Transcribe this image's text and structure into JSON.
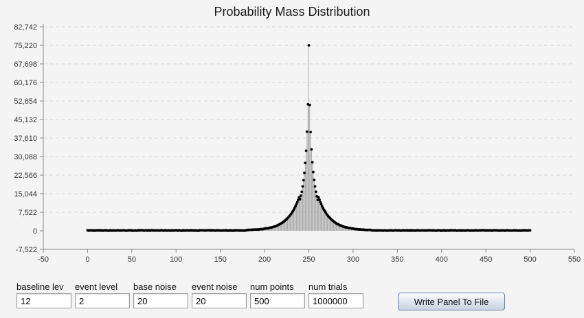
{
  "chart_data": {
    "type": "bar",
    "title": "Probability Mass Distribution",
    "xlabel": "",
    "ylabel": "",
    "xlim": [
      -50,
      550
    ],
    "ylim": [
      -7522,
      82742
    ],
    "x_ticks": [
      "-50",
      "0",
      "50",
      "100",
      "150",
      "200",
      "250",
      "300",
      "350",
      "400",
      "450",
      "500",
      "550"
    ],
    "y_ticks": [
      "-7,522",
      "0",
      "7,522",
      "15,044",
      "22,566",
      "30,088",
      "37,610",
      "45,132",
      "52,654",
      "60,176",
      "67,698",
      "75,220",
      "82,742"
    ],
    "grid": "horizontal dashed",
    "bar_color": "#9a9a9a",
    "point_color": "#000000",
    "x_range": [
      0,
      500
    ],
    "points": [
      {
        "x": 240,
        "y": 12800
      },
      {
        "x": 241,
        "y": 14200
      },
      {
        "x": 242,
        "y": 15800
      },
      {
        "x": 243,
        "y": 18000
      },
      {
        "x": 244,
        "y": 20500
      },
      {
        "x": 245,
        "y": 23500
      },
      {
        "x": 246,
        "y": 27500
      },
      {
        "x": 247,
        "y": 32500
      },
      {
        "x": 248,
        "y": 40200
      },
      {
        "x": 249,
        "y": 51300
      },
      {
        "x": 250,
        "y": 75220
      },
      {
        "x": 251,
        "y": 51000
      },
      {
        "x": 252,
        "y": 40000
      },
      {
        "x": 253,
        "y": 33000
      },
      {
        "x": 254,
        "y": 27800
      },
      {
        "x": 255,
        "y": 23800
      },
      {
        "x": 256,
        "y": 20600
      },
      {
        "x": 257,
        "y": 18000
      },
      {
        "x": 258,
        "y": 15800
      },
      {
        "x": 259,
        "y": 14000
      },
      {
        "x": 260,
        "y": 12500
      }
    ]
  },
  "controls": {
    "fields": [
      {
        "label": "baseline lev",
        "value": "12"
      },
      {
        "label": "event level",
        "value": "2"
      },
      {
        "label": "base noise",
        "value": "20"
      },
      {
        "label": "event noise",
        "value": "20"
      },
      {
        "label": "num points",
        "value": "500"
      },
      {
        "label": "num trials",
        "value": "1000000"
      }
    ],
    "write_button_label": "Write Panel To File"
  }
}
